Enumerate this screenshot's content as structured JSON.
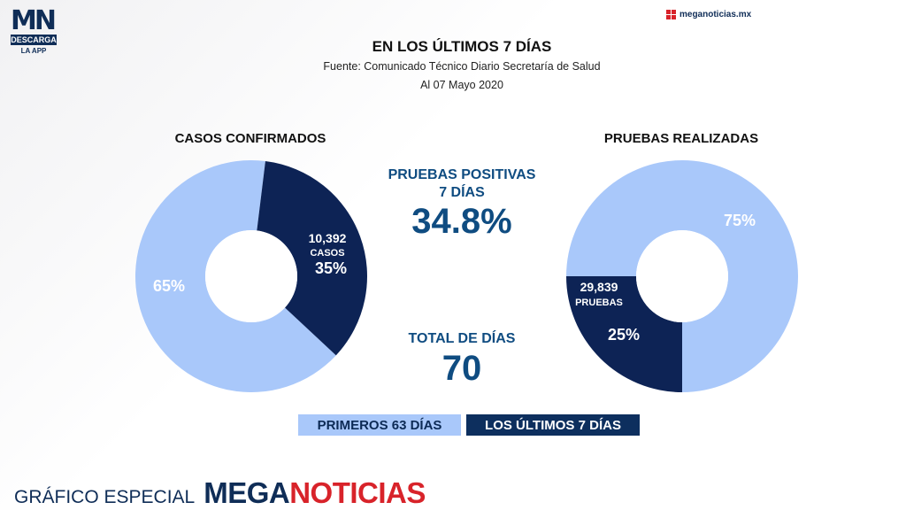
{
  "header": {
    "logo_mn": "MN",
    "logo_descarga": "DESCARGA",
    "logo_app": "LA APP",
    "site": "meganoticias.mx",
    "title": "EN LOS ÚLTIMOS 7 DÍAS",
    "source": "Fuente: Comunicado Técnico Diario Secretaría de Salud",
    "date": "Al 07 Mayo 2020"
  },
  "center": {
    "positivas_label_1": "PRUEBAS POSITIVAS",
    "positivas_label_2": "7 DÍAS",
    "positivas_value": "34.8%",
    "total_label": "TOTAL DE DÍAS",
    "total_value": "70"
  },
  "legend": {
    "first": "PRIMEROS 63 DÍAS",
    "last": "LOS ÚLTIMOS 7 DÍAS"
  },
  "footer": {
    "special": "GRÁFICO ESPECIAL",
    "brand_a": "MEGA",
    "brand_b": "NOTICIAS"
  },
  "colors": {
    "light": "#a9c8fa",
    "dark": "#0d2355",
    "accent_text": "#0f4c81",
    "brand_red": "#d8232a"
  },
  "chart_data": [
    {
      "type": "pie",
      "title": "CASOS CONFIRMADOS",
      "slices": [
        {
          "name": "PRIMEROS 63 DÍAS",
          "value": 65,
          "label": "65%"
        },
        {
          "name": "LOS ÚLTIMOS 7 DÍAS",
          "value": 35,
          "label": "35%",
          "count": "10,392",
          "unit": "CASOS"
        }
      ]
    },
    {
      "type": "pie",
      "title": "PRUEBAS REALIZADAS",
      "slices": [
        {
          "name": "PRIMEROS 63 DÍAS",
          "value": 75,
          "label": "75%"
        },
        {
          "name": "LOS ÚLTIMOS 7 DÍAS",
          "value": 25,
          "label": "25%",
          "count": "29,839",
          "unit": "PRUEBAS"
        }
      ]
    }
  ]
}
